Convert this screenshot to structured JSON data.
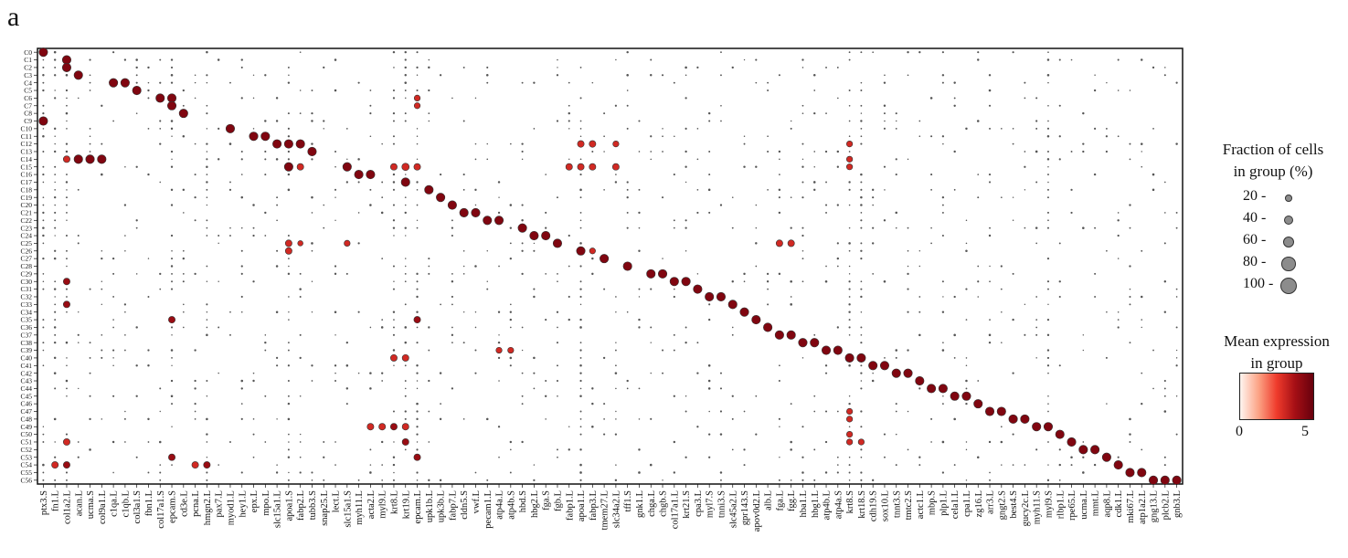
{
  "panel_label": "a",
  "chart_data": {
    "type": "dotplot",
    "groups": [
      "C0",
      "C1",
      "C2",
      "C3",
      "C4",
      "C5",
      "C6",
      "C7",
      "C8",
      "C9",
      "C10",
      "C11",
      "C12",
      "C13",
      "C14",
      "C15",
      "C16",
      "C17",
      "C18",
      "C19",
      "C20",
      "C21",
      "C22",
      "C23",
      "C24",
      "C25",
      "C26",
      "C27",
      "C28",
      "C29",
      "C30",
      "C31",
      "C32",
      "C33",
      "C34",
      "C35",
      "C36",
      "C37",
      "C38",
      "C39",
      "C40",
      "C41",
      "C42",
      "C43",
      "C44",
      "C45",
      "C46",
      "C47",
      "C48",
      "C49",
      "C50",
      "C51",
      "C52",
      "C53",
      "C54",
      "C55",
      "C56"
    ],
    "genes": [
      "ptx3.S",
      "fn1.L",
      "col1a2.L",
      "acan.L",
      "ucma.S",
      "col9a1.L",
      "c1qa.L",
      "c1qb.L",
      "col3a1.S",
      "fbn1.L",
      "col17a1.S",
      "epcam.S",
      "cd3e.L",
      "pcna.L",
      "hmgn2.L",
      "pax7.L",
      "myod1.L",
      "hey1.L",
      "epx.L",
      "mpo.L",
      "slc15a1.L",
      "apoa1.S",
      "fabp2.L",
      "tubb3.S",
      "snap25.L",
      "lect.L",
      "slc15a1.S",
      "myh11.L",
      "acta2.L",
      "myl9.L",
      "krt8.L",
      "krt19.L",
      "epcam.L",
      "upk1b.L",
      "upk3b.L",
      "fabp7.L",
      "cldn5.S",
      "vwf.L",
      "pecam1.L",
      "atp4a.L",
      "atp4b.S",
      "hbd.S",
      "hbg2.L",
      "fga.S",
      "fgb.L",
      "fabp1.L",
      "apoa1.L",
      "fabp3.L",
      "tmem27.L",
      "slc34a2.L",
      "tff1.S",
      "gnk1.L",
      "chga.L",
      "chgb.S",
      "col17a1.L",
      "krt21.S",
      "cpa3.L",
      "myl7.S",
      "tnni3.S",
      "slc45a2.L",
      "gpr143.S",
      "apov0d2.L",
      "alb.L",
      "fga.L",
      "fgg.L",
      "hba1.L",
      "hbg1.L",
      "atp4b.L",
      "atp4a.S",
      "krt8.S",
      "krt18.S",
      "cdh19.S",
      "sox10.L",
      "tnnt3.S",
      "tmtc2.S",
      "actc1.L",
      "mbp.S",
      "plp1.L",
      "cela1.L",
      "cpa1.L",
      "zg16.L",
      "arr3.L",
      "gngt2.S",
      "best4.S",
      "gucy2c.L",
      "myh11.S",
      "myl9.S",
      "rlbp1.L",
      "rpe65.L",
      "ucma.L",
      "mmt.L",
      "aqp8.L",
      "cdk1.L",
      "mki67.L",
      "atp1a2.L",
      "gng13.L",
      "plcb2.L",
      "gnb3.L"
    ],
    "marker_pairs": [
      [
        0,
        0
      ],
      [
        1,
        2
      ],
      [
        2,
        2
      ],
      [
        3,
        3
      ],
      [
        4,
        6
      ],
      [
        4,
        7
      ],
      [
        5,
        8
      ],
      [
        6,
        10
      ],
      [
        6,
        11
      ],
      [
        7,
        11
      ],
      [
        8,
        12
      ],
      [
        9,
        0
      ],
      [
        10,
        16
      ],
      [
        11,
        18
      ],
      [
        11,
        19
      ],
      [
        12,
        20
      ],
      [
        12,
        21
      ],
      [
        12,
        22
      ],
      [
        13,
        23
      ],
      [
        14,
        3
      ],
      [
        14,
        4
      ],
      [
        14,
        5
      ],
      [
        15,
        21
      ],
      [
        15,
        26
      ],
      [
        16,
        27
      ],
      [
        16,
        28
      ],
      [
        17,
        31
      ],
      [
        18,
        33
      ],
      [
        19,
        34
      ],
      [
        20,
        35
      ],
      [
        21,
        36
      ],
      [
        21,
        37
      ],
      [
        22,
        38
      ],
      [
        22,
        39
      ],
      [
        23,
        41
      ],
      [
        24,
        42
      ],
      [
        24,
        43
      ],
      [
        25,
        44
      ],
      [
        26,
        46
      ],
      [
        27,
        48
      ],
      [
        28,
        50
      ],
      [
        29,
        52
      ],
      [
        29,
        53
      ],
      [
        30,
        54
      ],
      [
        30,
        55
      ],
      [
        31,
        56
      ],
      [
        32,
        57
      ],
      [
        32,
        58
      ],
      [
        33,
        59
      ],
      [
        34,
        60
      ],
      [
        35,
        61
      ],
      [
        36,
        62
      ],
      [
        37,
        63
      ],
      [
        37,
        64
      ],
      [
        38,
        65
      ],
      [
        38,
        66
      ],
      [
        39,
        67
      ],
      [
        39,
        68
      ],
      [
        40,
        69
      ],
      [
        40,
        70
      ],
      [
        41,
        71
      ],
      [
        41,
        72
      ],
      [
        42,
        73
      ],
      [
        42,
        74
      ],
      [
        43,
        75
      ],
      [
        44,
        76
      ],
      [
        44,
        77
      ],
      [
        45,
        78
      ],
      [
        45,
        79
      ],
      [
        46,
        80
      ],
      [
        47,
        81
      ],
      [
        47,
        82
      ],
      [
        48,
        83
      ],
      [
        48,
        84
      ],
      [
        49,
        85
      ],
      [
        49,
        86
      ],
      [
        50,
        87
      ],
      [
        51,
        88
      ],
      [
        52,
        89
      ],
      [
        52,
        90
      ],
      [
        53,
        91
      ],
      [
        54,
        92
      ],
      [
        55,
        93
      ],
      [
        55,
        94
      ],
      [
        56,
        95
      ],
      [
        56,
        96
      ],
      [
        56,
        97
      ]
    ],
    "extra_dots": [
      [
        1,
        2,
        80,
        4
      ],
      [
        12,
        46,
        60,
        3
      ],
      [
        12,
        47,
        60,
        3
      ],
      [
        12,
        49,
        50,
        3
      ],
      [
        14,
        2,
        60,
        3
      ],
      [
        15,
        45,
        60,
        3
      ],
      [
        15,
        46,
        60,
        3
      ],
      [
        15,
        47,
        60,
        3
      ],
      [
        15,
        49,
        60,
        3
      ],
      [
        15,
        30,
        60,
        3
      ],
      [
        15,
        31,
        70,
        3
      ],
      [
        15,
        32,
        60,
        3
      ],
      [
        15,
        22,
        60,
        3
      ],
      [
        15,
        21,
        80,
        4
      ],
      [
        25,
        21,
        60,
        3
      ],
      [
        25,
        22,
        40,
        3
      ],
      [
        25,
        26,
        50,
        3
      ],
      [
        25,
        63,
        60,
        3
      ],
      [
        25,
        64,
        60,
        3
      ],
      [
        26,
        21,
        60,
        3
      ],
      [
        26,
        46,
        50,
        3
      ],
      [
        26,
        47,
        50,
        3
      ],
      [
        30,
        2,
        60,
        4
      ],
      [
        33,
        2,
        60,
        4
      ],
      [
        35,
        11,
        60,
        4
      ],
      [
        35,
        32,
        60,
        4
      ],
      [
        39,
        39,
        50,
        3
      ],
      [
        39,
        40,
        50,
        3
      ],
      [
        40,
        30,
        60,
        3
      ],
      [
        40,
        31,
        60,
        3
      ],
      [
        49,
        28,
        60,
        3
      ],
      [
        49,
        29,
        60,
        3
      ],
      [
        49,
        30,
        60,
        4
      ],
      [
        49,
        31,
        60,
        3
      ],
      [
        51,
        2,
        60,
        3
      ],
      [
        51,
        31,
        60,
        4
      ],
      [
        53,
        11,
        60,
        4
      ],
      [
        53,
        32,
        60,
        4
      ],
      [
        54,
        1,
        60,
        3
      ],
      [
        54,
        2,
        60,
        4
      ],
      [
        54,
        13,
        60,
        3
      ],
      [
        54,
        14,
        60,
        4
      ],
      [
        12,
        69,
        50,
        3
      ],
      [
        14,
        69,
        50,
        3
      ],
      [
        15,
        69,
        50,
        3
      ],
      [
        6,
        32,
        50,
        3
      ],
      [
        7,
        32,
        50,
        3
      ],
      [
        47,
        69,
        50,
        3
      ],
      [
        48,
        69,
        50,
        3
      ],
      [
        50,
        69,
        50,
        3
      ],
      [
        51,
        69,
        50,
        3
      ],
      [
        51,
        70,
        50,
        3
      ]
    ],
    "size_legend": {
      "title_lines": [
        "Fraction of cells",
        "in group (%)"
      ],
      "values": [
        20,
        40,
        60,
        80,
        100
      ]
    },
    "color_legend": {
      "title_lines": [
        "Mean expression",
        "in group"
      ],
      "min": 0,
      "max": 5,
      "colormap": [
        "#fff5f0",
        "#fca486",
        "#ef3b2c",
        "#a50f15",
        "#67000d"
      ]
    }
  }
}
